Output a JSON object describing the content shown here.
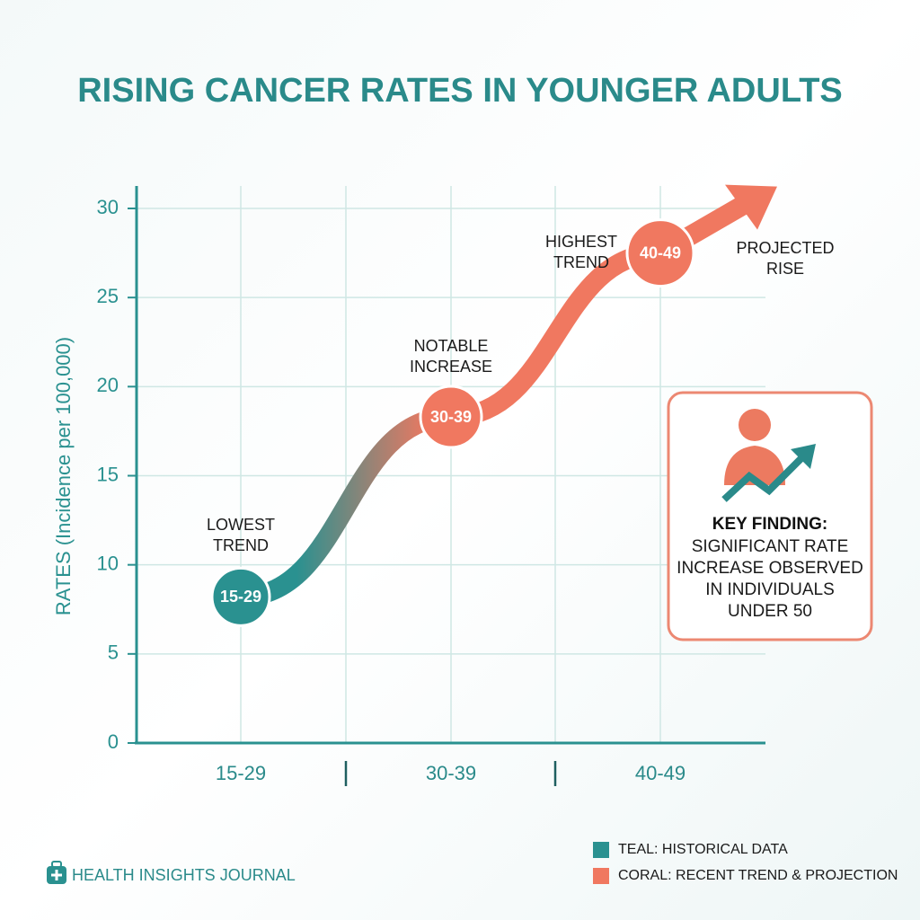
{
  "chart_data": {
    "type": "line",
    "title": "RISING CANCER RATES IN YOUNGER ADULTS",
    "y_label": "RATES (Incidence per 100,000)",
    "categories": [
      "15-29",
      "30-39",
      "40-49"
    ],
    "series": [
      {
        "name": "Incidence",
        "colors": [
          "#2a9190",
          "#f07860"
        ],
        "values": [
          8.2,
          18.3,
          27.5
        ]
      }
    ],
    "ylim": [
      0,
      30
    ],
    "yticks": [
      0,
      5,
      10,
      15,
      20,
      25,
      30
    ],
    "grid": true,
    "point_annotations": [
      [
        "LOWEST",
        "TREND"
      ],
      [
        "NOTABLE",
        "INCREASE"
      ],
      [
        "HIGHEST",
        "TREND"
      ]
    ],
    "projection_annotation": [
      "PROJECTED",
      "RISE"
    ],
    "key_finding": {
      "heading": "KEY FINDING:",
      "lines": [
        "SIGNIFICANT RATE",
        "INCREASE OBSERVED",
        "IN INDIVIDUALS",
        "UNDER 50"
      ]
    },
    "legend": [
      {
        "label": "TEAL: HISTORICAL DATA",
        "color": "#2a9190"
      },
      {
        "label": "CORAL: RECENT TREND & PROJECTION",
        "color": "#f07860"
      }
    ],
    "source": "HEALTH INSIGHTS JOURNAL"
  }
}
